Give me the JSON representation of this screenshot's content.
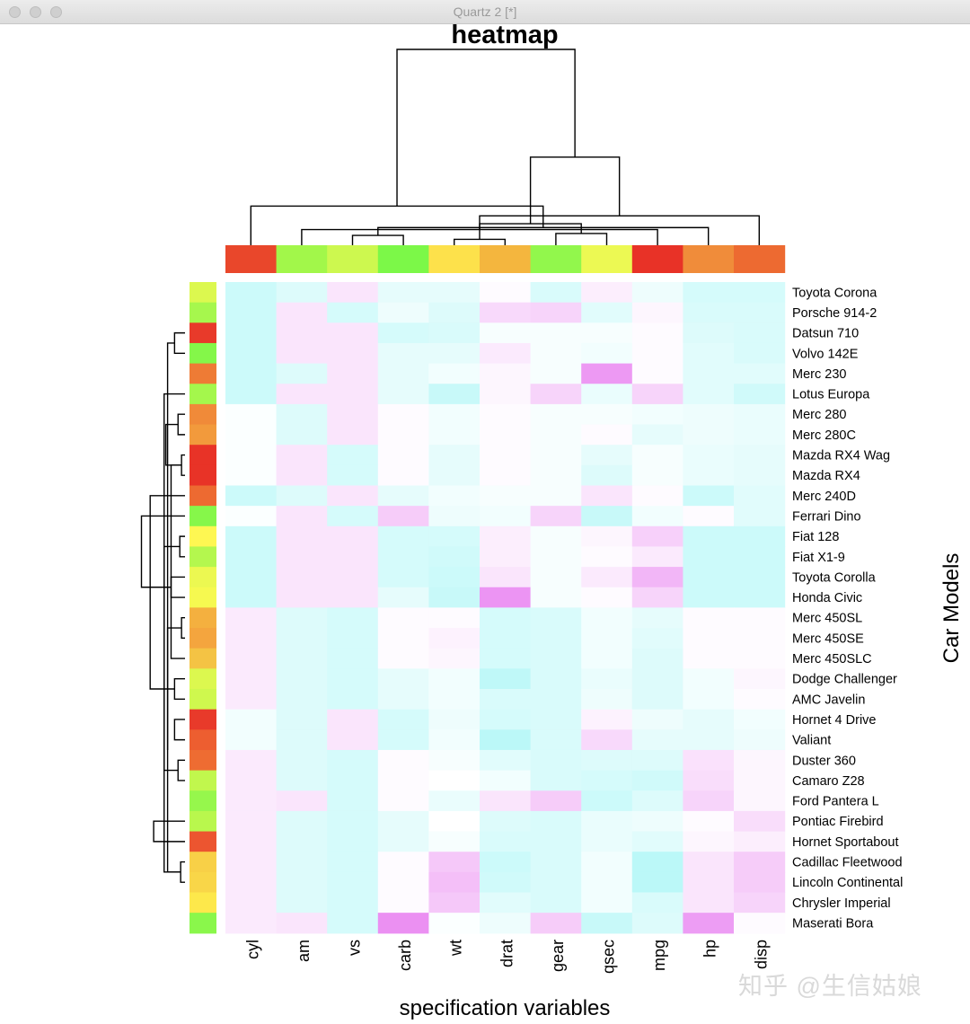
{
  "window": {
    "title": "Quartz 2 [*]"
  },
  "chart_data": {
    "type": "heatmap",
    "title": "heatmap",
    "xlabel": "specification variables",
    "ylabel": "Car Models",
    "columns": [
      "cyl",
      "am",
      "vs",
      "carb",
      "wt",
      "drat",
      "gear",
      "qsec",
      "mpg",
      "hp",
      "disp"
    ],
    "rows": [
      "Toyota Corona",
      "Porsche 914-2",
      "Datsun 710",
      "Volvo 142E",
      "Merc 230",
      "Lotus Europa",
      "Merc 280",
      "Merc 280C",
      "Mazda RX4 Wag",
      "Mazda RX4",
      "Merc 240D",
      "Ferrari Dino",
      "Fiat 128",
      "Fiat X1-9",
      "Toyota Corolla",
      "Honda Civic",
      "Merc 450SL",
      "Merc 450SE",
      "Merc 450SLC",
      "Dodge Challenger",
      "AMC Javelin",
      "Hornet 4 Drive",
      "Valiant",
      "Duster 360",
      "Camaro Z28",
      "Ford Pantera L",
      "Pontiac Firebird",
      "Hornet Sportabout",
      "Cadillac Fleetwood",
      "Lincoln Continental",
      "Chrysler Imperial",
      "Maserati Bora"
    ],
    "color_scale": {
      "low": "#aaf6f6",
      "mid": "#ffffff",
      "high": "#e87ff0"
    },
    "value_range": [
      -2,
      3
    ],
    "values": [
      [
        -1.2,
        -0.8,
        0.6,
        -0.6,
        -0.6,
        0.1,
        -0.9,
        0.4,
        -0.4,
        -1.0,
        -1.0
      ],
      [
        -1.2,
        0.6,
        -1.0,
        -0.4,
        -0.8,
        0.9,
        1.0,
        -0.7,
        0.2,
        -0.9,
        -0.9
      ],
      [
        -1.2,
        0.6,
        0.6,
        -1.0,
        -0.9,
        -0.2,
        -0.2,
        -0.2,
        0.1,
        -0.8,
        -0.9
      ],
      [
        -1.2,
        0.6,
        0.6,
        -0.6,
        -0.6,
        0.5,
        -0.2,
        -0.3,
        0.1,
        -0.7,
        -0.9
      ],
      [
        -1.2,
        -0.8,
        0.6,
        -0.6,
        -0.3,
        0.2,
        -0.2,
        2.4,
        0.1,
        -0.7,
        -0.7
      ],
      [
        -1.2,
        0.6,
        0.6,
        -0.6,
        -1.3,
        0.2,
        1.0,
        -0.5,
        1.0,
        -0.7,
        -1.1
      ],
      [
        -0.1,
        -0.8,
        0.6,
        0.1,
        -0.3,
        0.1,
        -0.2,
        -0.2,
        -0.3,
        -0.4,
        -0.5
      ],
      [
        -0.1,
        -0.8,
        0.6,
        0.1,
        -0.3,
        0.1,
        -0.2,
        0.1,
        -0.6,
        -0.4,
        -0.5
      ],
      [
        -0.1,
        0.6,
        -1.0,
        0.1,
        -0.6,
        0.1,
        -0.2,
        -0.6,
        -0.2,
        -0.5,
        -0.6
      ],
      [
        -0.1,
        0.6,
        -1.0,
        0.1,
        -0.6,
        0.1,
        -0.2,
        -0.8,
        -0.2,
        -0.5,
        -0.6
      ],
      [
        -1.2,
        -0.8,
        0.6,
        -0.6,
        -0.3,
        -0.2,
        -0.2,
        0.6,
        0.1,
        -1.2,
        -0.7
      ],
      [
        -0.1,
        0.6,
        -1.0,
        1.2,
        -0.4,
        -0.3,
        1.0,
        -1.3,
        -0.3,
        0.1,
        -0.7
      ],
      [
        -1.2,
        0.6,
        0.6,
        -1.0,
        -1.0,
        0.4,
        -0.2,
        0.2,
        1.1,
        -1.2,
        -1.2
      ],
      [
        -1.2,
        0.6,
        0.6,
        -1.0,
        -1.1,
        0.4,
        -0.2,
        0.1,
        0.5,
        -1.2,
        -1.2
      ],
      [
        -1.2,
        0.6,
        0.6,
        -1.0,
        -1.2,
        0.6,
        -0.2,
        0.5,
        1.7,
        -1.2,
        -1.2
      ],
      [
        -1.2,
        0.6,
        0.6,
        -0.6,
        -1.3,
        2.5,
        -0.2,
        0.1,
        1.0,
        -1.2,
        -1.2
      ],
      [
        0.5,
        -0.8,
        -1.0,
        0.1,
        0.1,
        -1.0,
        -0.9,
        -0.3,
        -0.6,
        0.1,
        0.1
      ],
      [
        0.5,
        -0.8,
        -1.0,
        0.1,
        0.3,
        -1.0,
        -0.9,
        -0.3,
        -0.7,
        0.1,
        0.1
      ],
      [
        0.5,
        -0.8,
        -1.0,
        0.1,
        0.2,
        -1.0,
        -0.9,
        -0.3,
        -0.8,
        0.1,
        0.1
      ],
      [
        0.5,
        -0.8,
        -1.0,
        -0.6,
        -0.3,
        -1.5,
        -0.9,
        -0.5,
        -0.8,
        -0.3,
        0.2
      ],
      [
        0.5,
        -0.8,
        -1.0,
        -0.6,
        -0.3,
        -0.9,
        -0.9,
        -0.4,
        -0.8,
        -0.3,
        0.1
      ],
      [
        -0.3,
        -0.8,
        0.6,
        -1.0,
        -0.4,
        -1.0,
        -0.9,
        0.3,
        -0.4,
        -0.6,
        -0.3
      ],
      [
        -0.3,
        -0.8,
        0.6,
        -1.0,
        -0.3,
        -1.6,
        -0.9,
        0.9,
        -0.6,
        -0.6,
        -0.4
      ],
      [
        0.5,
        -0.8,
        -1.0,
        0.1,
        -0.2,
        -0.7,
        -0.9,
        -0.8,
        -0.8,
        0.7,
        0.2
      ],
      [
        0.5,
        -0.8,
        -1.0,
        0.1,
        0.0,
        -0.3,
        -0.9,
        -1.0,
        -1.1,
        0.8,
        0.2
      ],
      [
        0.5,
        0.6,
        -1.0,
        0.1,
        -0.5,
        0.6,
        1.2,
        -1.2,
        -0.8,
        1.0,
        0.2
      ],
      [
        0.5,
        -0.8,
        -1.0,
        -0.6,
        0.0,
        -0.8,
        -0.9,
        -0.5,
        -0.4,
        0.1,
        0.8
      ],
      [
        0.5,
        -0.8,
        -1.0,
        -0.6,
        -0.2,
        -0.9,
        -0.9,
        -0.5,
        -0.7,
        0.2,
        0.4
      ],
      [
        0.5,
        -0.8,
        -1.0,
        0.1,
        1.3,
        -1.2,
        -0.9,
        -0.3,
        -1.6,
        0.6,
        1.2
      ],
      [
        0.5,
        -0.8,
        -1.0,
        0.1,
        1.5,
        -1.1,
        -0.9,
        -0.3,
        -1.6,
        0.6,
        1.2
      ],
      [
        0.5,
        -0.8,
        -1.0,
        0.1,
        1.3,
        -0.7,
        -0.9,
        -0.3,
        -0.9,
        0.6,
        1.0
      ],
      [
        0.5,
        0.6,
        -1.0,
        2.6,
        -0.1,
        -0.4,
        1.2,
        -1.3,
        -0.8,
        2.3,
        0.1
      ]
    ],
    "column_side_colors": [
      "#e9472b",
      "#a2f74a",
      "#cdf84f",
      "#7cf848",
      "#fde14b",
      "#f4b63e",
      "#92f74c",
      "#ecf953",
      "#e83227",
      "#f08c3a",
      "#ed6a31"
    ],
    "row_side_colors": [
      "#dcf84f",
      "#a6f74d",
      "#e83a2a",
      "#84f749",
      "#ee7b35",
      "#a4f74c",
      "#f08a39",
      "#f29a3c",
      "#e83327",
      "#e83327",
      "#ed6a31",
      "#86f74a",
      "#fef752",
      "#b4f74e",
      "#ecf851",
      "#f6f950",
      "#f4b03f",
      "#f4a53e",
      "#f4c344",
      "#dcf84f",
      "#cff84e",
      "#e83a2a",
      "#ed5e30",
      "#ee6c32",
      "#c1f74d",
      "#96f74c",
      "#b9f74d",
      "#ec5530",
      "#f8d047",
      "#f9d648",
      "#fde84b",
      "#8af74b"
    ],
    "col_dendrogram": [
      [
        4,
        5,
        0.03
      ],
      [
        2,
        3,
        0.05
      ],
      [
        6,
        7,
        0.06
      ],
      [
        1,
        8,
        0.08
      ],
      [
        9,
        12,
        0.09
      ],
      [
        11,
        13,
        0.11
      ],
      [
        10,
        14,
        0.15
      ],
      [
        0,
        15,
        0.2
      ],
      [
        16,
        17,
        0.45
      ],
      [
        18,
        19,
        1.0
      ]
    ],
    "row_dendrogram": [
      [
        8,
        9,
        0.02
      ],
      [
        16,
        17,
        0.02
      ],
      [
        28,
        29,
        0.025
      ],
      [
        12,
        13,
        0.03
      ],
      [
        2,
        3,
        0.06
      ],
      [
        6,
        7,
        0.04
      ],
      [
        23,
        24,
        0.04
      ],
      [
        21,
        22,
        0.06
      ],
      [
        19,
        20,
        0.06
      ],
      [
        45,
        14,
        0.06
      ],
      [
        14,
        15,
        0.08
      ],
      [
        32,
        18,
        0.08
      ],
      [
        48,
        36,
        0.09
      ],
      [
        34,
        33,
        0.1
      ],
      [
        43,
        36,
        0.1
      ],
      [
        37,
        32,
        0.11
      ],
      [
        35,
        38,
        0.12
      ],
      [
        34,
        5,
        0.12
      ],
      [
        1,
        55,
        0.13
      ],
      [
        0,
        58,
        0.14
      ],
      [
        42,
        50,
        0.15
      ],
      [
        53,
        39,
        0.17
      ],
      [
        26,
        27,
        0.18
      ],
      [
        40,
        10,
        0.2
      ],
      [
        54,
        46,
        0.22
      ],
      [
        25,
        62,
        0.25
      ],
      [
        41,
        11,
        0.25
      ],
      [
        70,
        30,
        0.3
      ],
      [
        70,
        63,
        0.35
      ],
      [
        64,
        31,
        0.32
      ],
      [
        66,
        69,
        0.4
      ],
      [
        68,
        61,
        0.5
      ],
      [
        60,
        61,
        0.85
      ],
      [
        64,
        72,
        1.0
      ]
    ]
  },
  "watermark": "知乎 @生信姑娘"
}
